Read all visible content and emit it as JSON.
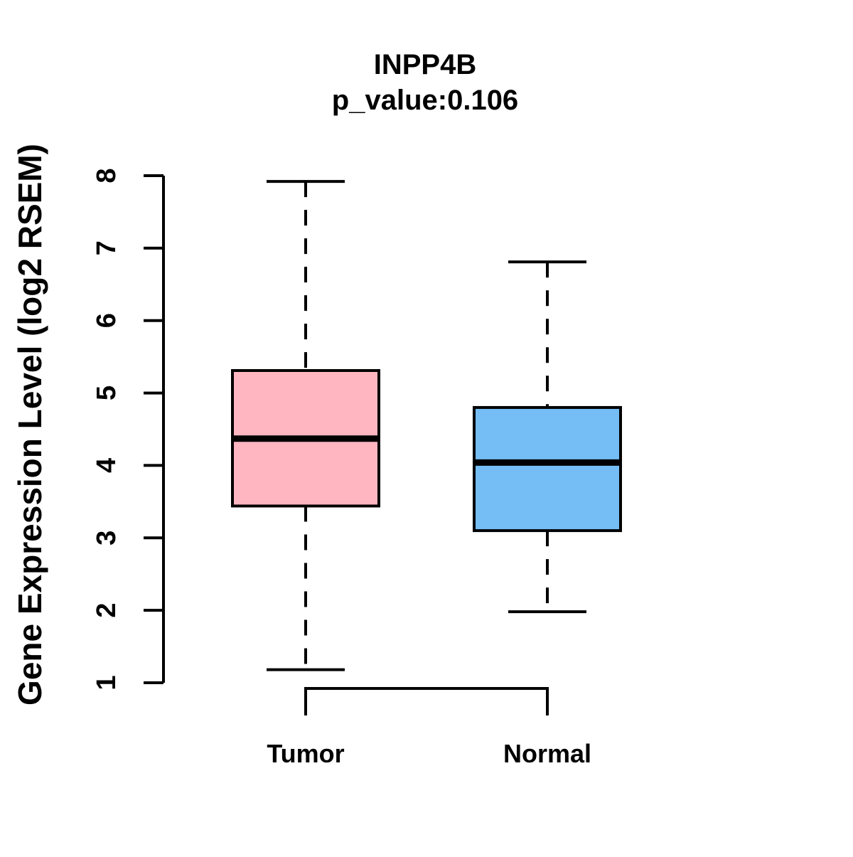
{
  "header": {
    "title": "INPP4B",
    "subtitle": "p_value:0.106"
  },
  "y_axis": {
    "label": "Gene Expression Level (log2 RSEM)",
    "tick_labels": [
      "1",
      "2",
      "3",
      "4",
      "5",
      "6",
      "7",
      "8"
    ]
  },
  "x_axis": {
    "categories": [
      "Tumor",
      "Normal"
    ]
  },
  "chart_data": {
    "type": "boxplot",
    "title": "INPP4B",
    "subtitle": "p_value:0.106",
    "xlabel": "",
    "ylabel": "Gene Expression Level (log2 RSEM)",
    "ylim": [
      1,
      8
    ],
    "yticks": [
      1,
      2,
      3,
      4,
      5,
      6,
      7,
      8
    ],
    "grid": false,
    "legend": "none",
    "categories": [
      "Tumor",
      "Normal"
    ],
    "series": [
      {
        "name": "Tumor",
        "fill_color": "#FFB6C1",
        "whisker_low": 1.18,
        "q1": 3.44,
        "median": 4.37,
        "q3": 5.31,
        "whisker_high": 7.92
      },
      {
        "name": "Normal",
        "fill_color": "#74BDF5",
        "whisker_low": 1.98,
        "q1": 3.1,
        "median": 4.04,
        "q3": 4.8,
        "whisker_high": 6.81
      }
    ],
    "styles": {
      "box_edge_color": "#000000",
      "median_color": "#000000",
      "whisker_line_style": "dashed",
      "axis_color": "#000000",
      "text_color": "#000000",
      "background": "#FFFFFF"
    }
  }
}
